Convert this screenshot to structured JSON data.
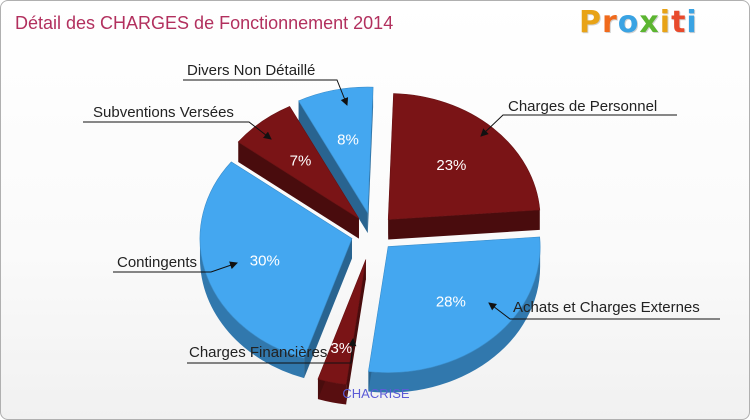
{
  "title": "Détail des CHARGES de Fonctionnement 2014",
  "logo": {
    "letters": [
      "P",
      "r",
      "o",
      "x",
      "i",
      "t",
      "i"
    ],
    "colors": [
      "#e8a317",
      "#f06a1c",
      "#3aa3e3",
      "#5cb531",
      "#e8a317",
      "#e84a2c",
      "#3aa3e3"
    ]
  },
  "footer": "CHACRISE",
  "colors": {
    "dark_red": "#7a1416",
    "blue": "#44a7f0",
    "title": "#b2305e"
  },
  "chart_data": {
    "type": "pie",
    "title": "Détail des CHARGES de Fonctionnement 2014",
    "slices": [
      {
        "name": "Charges de Personnel",
        "percent": 23,
        "label": "23%",
        "color": "#7a1416"
      },
      {
        "name": "Achats et Charges Externes",
        "percent": 28,
        "label": "28%",
        "color": "#44a7f0"
      },
      {
        "name": "Charges Financières",
        "percent": 3,
        "label": "3%",
        "color": "#7a1416"
      },
      {
        "name": "Contingents",
        "percent": 30,
        "label": "30%",
        "color": "#44a7f0"
      },
      {
        "name": "Subventions Versées",
        "percent": 7,
        "label": "7%",
        "color": "#7a1416"
      },
      {
        "name": "Divers Non Détaillé",
        "percent": 8,
        "label": "8%",
        "color": "#44a7f0"
      }
    ]
  }
}
